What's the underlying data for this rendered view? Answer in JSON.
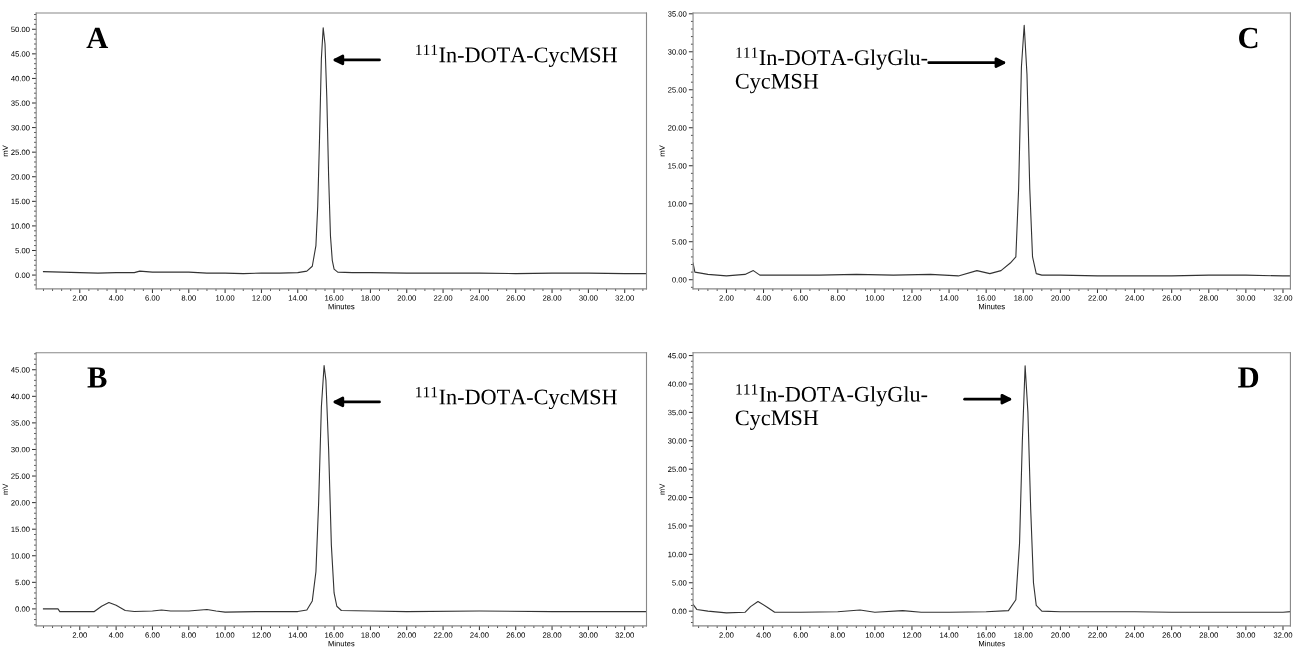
{
  "chart_data": [
    {
      "type": "line",
      "xlabel": "Minutes",
      "ylabel": "mV",
      "xlim": [
        -0.4,
        33.2
      ],
      "ylim": [
        -2.8,
        53.3
      ],
      "xticks": [
        {
          "value": 2,
          "label": "2.00"
        },
        {
          "value": 4,
          "label": "4.00"
        },
        {
          "value": 6,
          "label": "6.00"
        },
        {
          "value": 8,
          "label": "8.00"
        },
        {
          "value": 10,
          "label": "10.00"
        },
        {
          "value": 12,
          "label": "12.00"
        },
        {
          "value": 14,
          "label": "14.00"
        },
        {
          "value": 16,
          "label": "16.00"
        },
        {
          "value": 18,
          "label": "18.00"
        },
        {
          "value": 20,
          "label": "20.00"
        },
        {
          "value": 22,
          "label": "22.00"
        },
        {
          "value": 24,
          "label": "24.00"
        },
        {
          "value": 26,
          "label": "26.00"
        },
        {
          "value": 28,
          "label": "28.00"
        },
        {
          "value": 30,
          "label": "30.00"
        },
        {
          "value": 32,
          "label": "32.00"
        }
      ],
      "yticks": [
        {
          "value": 0,
          "label": "0.00"
        },
        {
          "value": 5,
          "label": "5.00"
        },
        {
          "value": 10,
          "label": "10.00"
        },
        {
          "value": 15,
          "label": "15.00"
        },
        {
          "value": 20,
          "label": "20.00"
        },
        {
          "value": 25,
          "label": "25.00"
        },
        {
          "value": 30,
          "label": "30.00"
        },
        {
          "value": 35,
          "label": "35.00"
        },
        {
          "value": 40,
          "label": "40.00"
        },
        {
          "value": 45,
          "label": "45.00"
        },
        {
          "value": 50,
          "label": "50.00"
        }
      ],
      "grid": false,
      "marker": "none",
      "line_style": "solid",
      "annotations": [
        "A",
        "$^{111}$In-DOTA-CycMSH"
      ],
      "series": [
        {
          "color": "#333333",
          "x": [
            0,
            1,
            2,
            3,
            4,
            5,
            5.3,
            6,
            7,
            8,
            9,
            10,
            11,
            12,
            13,
            14,
            14.5,
            14.8,
            15.0,
            15.1,
            15.2,
            15.3,
            15.4,
            15.5,
            15.6,
            15.7,
            15.8,
            15.9,
            16.0,
            16.2,
            17,
            18,
            20,
            22,
            24,
            26,
            28,
            30,
            32,
            33.2
          ],
          "values": [
            0.7,
            0.6,
            0.5,
            0.4,
            0.5,
            0.5,
            0.8,
            0.6,
            0.6,
            0.6,
            0.4,
            0.4,
            0.3,
            0.4,
            0.4,
            0.5,
            0.8,
            1.8,
            6,
            14,
            28,
            44,
            50.3,
            47,
            36,
            20,
            8,
            3,
            1.2,
            0.6,
            0.5,
            0.5,
            0.4,
            0.4,
            0.4,
            0.3,
            0.4,
            0.4,
            0.3,
            0.3
          ]
        }
      ]
    },
    {
      "type": "line",
      "xlabel": "Minutes",
      "ylabel": "mV",
      "xlim": [
        0.2,
        32.4
      ],
      "ylim": [
        -1.2,
        35.1
      ],
      "xticks": [
        {
          "value": 2,
          "label": "2.00"
        },
        {
          "value": 4,
          "label": "4.00"
        },
        {
          "value": 6,
          "label": "6.00"
        },
        {
          "value": 8,
          "label": "8.00"
        },
        {
          "value": 10,
          "label": "10.00"
        },
        {
          "value": 12,
          "label": "12.00"
        },
        {
          "value": 14,
          "label": "14.00"
        },
        {
          "value": 16,
          "label": "16.00"
        },
        {
          "value": 18,
          "label": "18.00"
        },
        {
          "value": 20,
          "label": "20.00"
        },
        {
          "value": 22,
          "label": "22.00"
        },
        {
          "value": 24,
          "label": "24.00"
        },
        {
          "value": 26,
          "label": "26.00"
        },
        {
          "value": 28,
          "label": "28.00"
        },
        {
          "value": 30,
          "label": "30.00"
        },
        {
          "value": 32,
          "label": "32.00"
        }
      ],
      "yticks": [
        {
          "value": 0,
          "label": "0.00"
        },
        {
          "value": 5,
          "label": "5.00"
        },
        {
          "value": 10,
          "label": "10.00"
        },
        {
          "value": 15,
          "label": "15.00"
        },
        {
          "value": 20,
          "label": "20.00"
        },
        {
          "value": 25,
          "label": "25.00"
        },
        {
          "value": 30,
          "label": "30.00"
        },
        {
          "value": 35,
          "label": "35.00"
        }
      ],
      "grid": false,
      "marker": "none",
      "line_style": "solid",
      "annotations": [
        "C",
        "$^{111}$In-DOTA-GlyGlu-\nCycMSH"
      ],
      "series": [
        {
          "color": "#333333",
          "x": [
            0.2,
            0.3,
            1,
            2,
            3,
            3.45,
            3.8,
            5,
            7,
            9,
            11,
            13,
            14.5,
            15.5,
            16.2,
            16.8,
            17.3,
            17.6,
            17.75,
            17.9,
            18.05,
            18.2,
            18.35,
            18.5,
            18.7,
            19,
            20,
            22,
            24,
            26,
            28,
            30,
            32,
            32.4
          ],
          "values": [
            2.2,
            1.0,
            0.7,
            0.5,
            0.7,
            1.2,
            0.6,
            0.6,
            0.6,
            0.7,
            0.6,
            0.7,
            0.5,
            1.2,
            0.8,
            1.2,
            2.2,
            3,
            12,
            28,
            33.5,
            27,
            12,
            3,
            0.8,
            0.6,
            0.6,
            0.5,
            0.5,
            0.5,
            0.6,
            0.6,
            0.5,
            0.5
          ]
        }
      ]
    },
    {
      "type": "line",
      "xlabel": "Minutes",
      "ylabel": "mV",
      "xlim": [
        -0.4,
        33.2
      ],
      "ylim": [
        -3.2,
        48.2
      ],
      "xticks": [
        {
          "value": 2,
          "label": "2.00"
        },
        {
          "value": 4,
          "label": "4.00"
        },
        {
          "value": 6,
          "label": "6.00"
        },
        {
          "value": 8,
          "label": "8.00"
        },
        {
          "value": 10,
          "label": "10.00"
        },
        {
          "value": 12,
          "label": "12.00"
        },
        {
          "value": 14,
          "label": "14.00"
        },
        {
          "value": 16,
          "label": "16.00"
        },
        {
          "value": 18,
          "label": "18.00"
        },
        {
          "value": 20,
          "label": "20.00"
        },
        {
          "value": 22,
          "label": "22.00"
        },
        {
          "value": 24,
          "label": "24.00"
        },
        {
          "value": 26,
          "label": "26.00"
        },
        {
          "value": 28,
          "label": "28.00"
        },
        {
          "value": 30,
          "label": "30.00"
        },
        {
          "value": 32,
          "label": "32.00"
        }
      ],
      "yticks": [
        {
          "value": 0,
          "label": "0.00"
        },
        {
          "value": 5,
          "label": "5.00"
        },
        {
          "value": 10,
          "label": "10.00"
        },
        {
          "value": 15,
          "label": "15.00"
        },
        {
          "value": 20,
          "label": "20.00"
        },
        {
          "value": 25,
          "label": "25.00"
        },
        {
          "value": 30,
          "label": "30.00"
        },
        {
          "value": 35,
          "label": "35.00"
        },
        {
          "value": 40,
          "label": "40.00"
        },
        {
          "value": 45,
          "label": "45.00"
        }
      ],
      "grid": false,
      "marker": "none",
      "line_style": "solid",
      "annotations": [
        "B",
        "$^{111}$In-DOTA-CycMSH"
      ],
      "series": [
        {
          "color": "#333333",
          "x": [
            0,
            0.8,
            0.9,
            2,
            2.8,
            3.2,
            3.6,
            4.0,
            4.5,
            5,
            6,
            6.5,
            7,
            8,
            9,
            9.5,
            10,
            12,
            14,
            14.5,
            14.8,
            15.0,
            15.15,
            15.3,
            15.45,
            15.55,
            15.7,
            15.85,
            16.0,
            16.15,
            16.4,
            18,
            20,
            24,
            28,
            32,
            33.2
          ],
          "values": [
            0.0,
            0.0,
            -0.5,
            -0.5,
            -0.5,
            0.5,
            1.2,
            0.7,
            -0.3,
            -0.5,
            -0.4,
            -0.2,
            -0.4,
            -0.4,
            -0.1,
            -0.4,
            -0.6,
            -0.5,
            -0.5,
            -0.2,
            1.5,
            7,
            20,
            38,
            45.8,
            43,
            30,
            12,
            3,
            0.5,
            -0.3,
            -0.4,
            -0.5,
            -0.4,
            -0.5,
            -0.5,
            -0.5
          ]
        }
      ]
    },
    {
      "type": "line",
      "xlabel": "Minutes",
      "ylabel": "mV",
      "xlim": [
        0.2,
        32.4
      ],
      "ylim": [
        -2.6,
        45.5
      ],
      "xticks": [
        {
          "value": 2,
          "label": "2.00"
        },
        {
          "value": 4,
          "label": "4.00"
        },
        {
          "value": 6,
          "label": "6.00"
        },
        {
          "value": 8,
          "label": "8.00"
        },
        {
          "value": 10,
          "label": "10.00"
        },
        {
          "value": 12,
          "label": "12.00"
        },
        {
          "value": 14,
          "label": "14.00"
        },
        {
          "value": 16,
          "label": "16.00"
        },
        {
          "value": 18,
          "label": "18.00"
        },
        {
          "value": 20,
          "label": "20.00"
        },
        {
          "value": 22,
          "label": "22.00"
        },
        {
          "value": 24,
          "label": "24.00"
        },
        {
          "value": 26,
          "label": "26.00"
        },
        {
          "value": 28,
          "label": "28.00"
        },
        {
          "value": 30,
          "label": "30.00"
        },
        {
          "value": 32,
          "label": "32.00"
        }
      ],
      "yticks": [
        {
          "value": 0,
          "label": "0.00"
        },
        {
          "value": 5,
          "label": "5.00"
        },
        {
          "value": 10,
          "label": "10.00"
        },
        {
          "value": 15,
          "label": "15.00"
        },
        {
          "value": 20,
          "label": "20.00"
        },
        {
          "value": 25,
          "label": "25.00"
        },
        {
          "value": 30,
          "label": "30.00"
        },
        {
          "value": 35,
          "label": "35.00"
        },
        {
          "value": 40,
          "label": "40.00"
        },
        {
          "value": 45,
          "label": "45.00"
        }
      ],
      "grid": false,
      "marker": "none",
      "line_style": "solid",
      "annotations": [
        "D",
        "$^{111}$In-DOTA-GlyGlu-\nCycMSH"
      ],
      "series": [
        {
          "color": "#333333",
          "x": [
            0.2,
            0.4,
            1,
            2,
            3,
            3.3,
            3.7,
            4.2,
            4.6,
            6,
            8,
            9.2,
            10,
            11.5,
            12.5,
            14,
            16,
            17.2,
            17.6,
            17.8,
            17.95,
            18.1,
            18.25,
            18.4,
            18.55,
            18.7,
            19,
            20,
            22,
            24,
            26,
            28,
            30,
            32,
            32.4
          ],
          "values": [
            1.2,
            0.3,
            0,
            -0.3,
            -0.2,
            0.8,
            1.7,
            0.7,
            -0.2,
            -0.2,
            -0.1,
            0.2,
            -0.2,
            0.1,
            -0.2,
            -0.2,
            -0.1,
            0.1,
            2,
            12,
            30,
            43.2,
            35,
            18,
            5,
            1,
            0,
            -0.1,
            -0.1,
            -0.1,
            -0.2,
            -0.2,
            -0.2,
            -0.2,
            -0.1
          ]
        }
      ]
    }
  ]
}
